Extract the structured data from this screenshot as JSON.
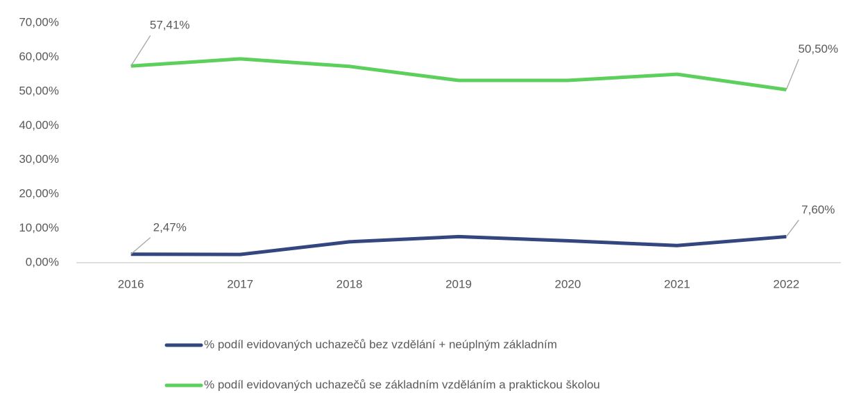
{
  "chart_data": {
    "type": "line",
    "categories": [
      "2016",
      "2017",
      "2018",
      "2019",
      "2020",
      "2021",
      "2022"
    ],
    "series": [
      {
        "name": "% podíl evidovaných uchazečů bez vzdělání + neúplným základním",
        "color": "#33467f",
        "values": [
          2.47,
          2.4,
          6.1,
          7.6,
          6.4,
          5.0,
          7.6
        ],
        "value_labels": [
          "2,47%",
          null,
          null,
          null,
          null,
          null,
          "7,60%"
        ]
      },
      {
        "name": "% podíl evidovaných uchazečů se základním vzděláním a praktickou školou",
        "color": "#5ccf5c",
        "values": [
          57.41,
          59.5,
          57.3,
          53.2,
          53.2,
          55.0,
          50.5
        ],
        "value_labels": [
          "57,41%",
          null,
          null,
          null,
          null,
          null,
          "50,50%"
        ]
      }
    ],
    "ylim": [
      0,
      70
    ],
    "yticks": [
      {
        "value": 0,
        "label": "0,00%"
      },
      {
        "value": 10,
        "label": "10,00%"
      },
      {
        "value": 20,
        "label": "20,00%"
      },
      {
        "value": 30,
        "label": "30,00%"
      },
      {
        "value": 40,
        "label": "40,00%"
      },
      {
        "value": 50,
        "label": "50,00%"
      },
      {
        "value": 60,
        "label": "60,00%"
      },
      {
        "value": 70,
        "label": "70,00%"
      }
    ],
    "grid": false
  }
}
